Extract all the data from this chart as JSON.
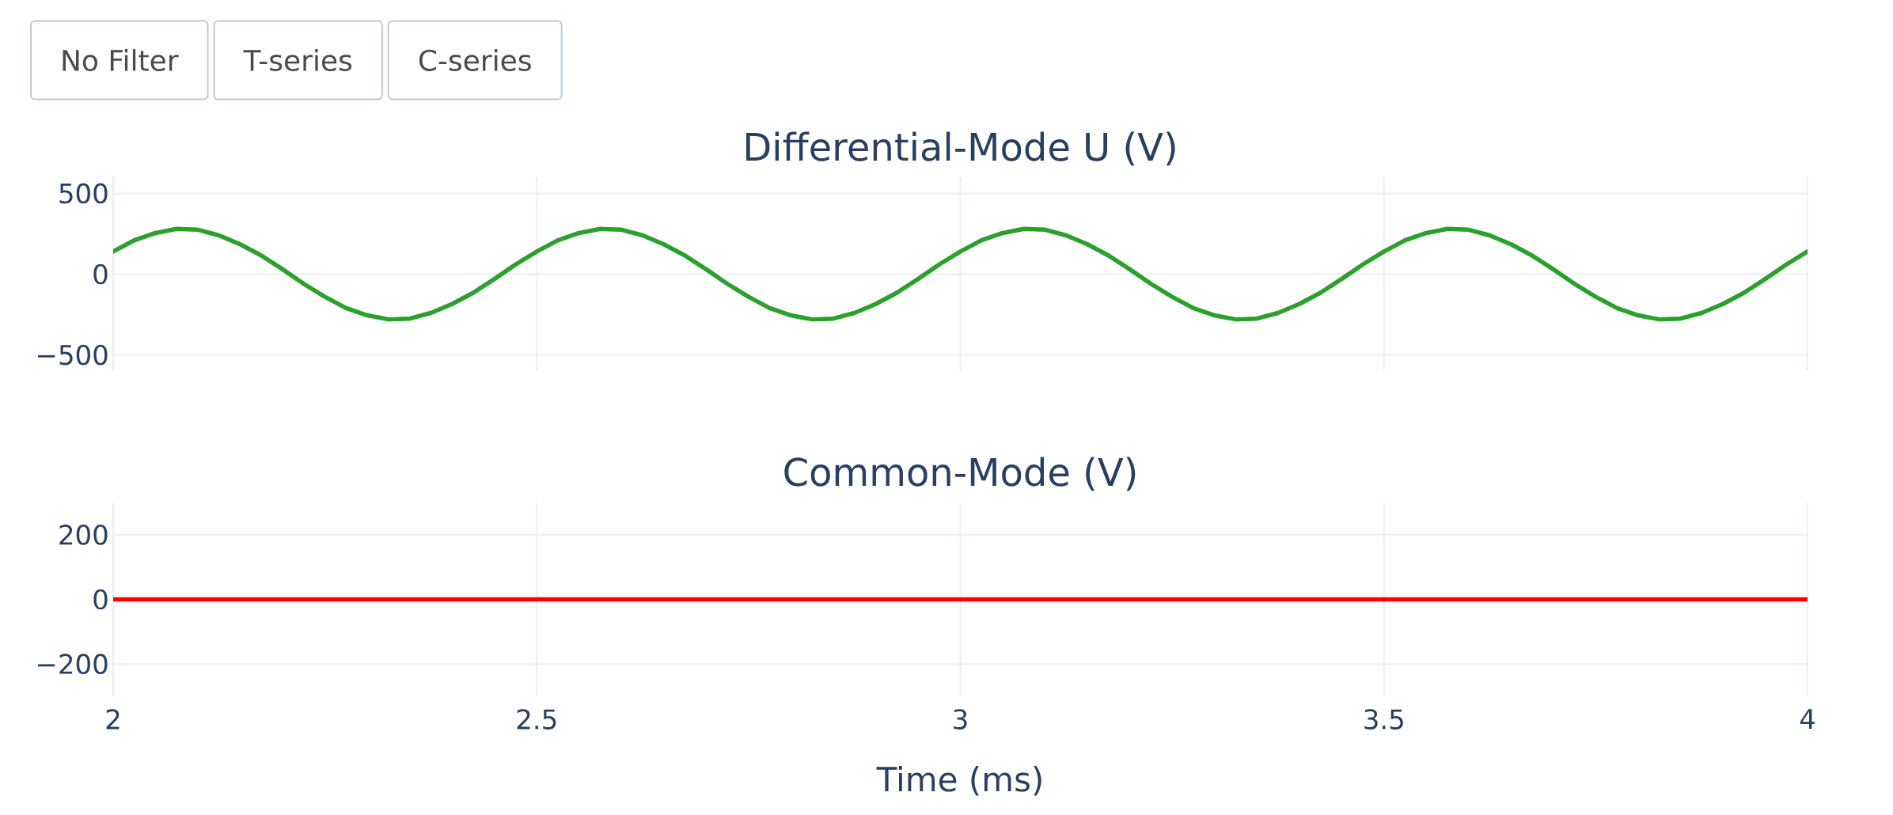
{
  "chart_data": [
    {
      "type": "line",
      "title": "Differential-Mode U (V)",
      "annotations": [
        "No Filter",
        "T-series",
        "C-series"
      ],
      "x": [
        2,
        2.025,
        2.05,
        2.075,
        2.1,
        2.125,
        2.15,
        2.175,
        2.2,
        2.225,
        2.25,
        2.275,
        2.3,
        2.325,
        2.35,
        2.375,
        2.4,
        2.425,
        2.45,
        2.475,
        2.5,
        2.525,
        2.55,
        2.575,
        2.6,
        2.625,
        2.65,
        2.675,
        2.7,
        2.725,
        2.75,
        2.775,
        2.8,
        2.825,
        2.85,
        2.875,
        2.9,
        2.925,
        2.95,
        2.975,
        3,
        3.025,
        3.05,
        3.075,
        3.1,
        3.125,
        3.15,
        3.175,
        3.2,
        3.225,
        3.25,
        3.275,
        3.3,
        3.325,
        3.35,
        3.375,
        3.4,
        3.425,
        3.45,
        3.475,
        3.5,
        3.525,
        3.55,
        3.575,
        3.6,
        3.625,
        3.65,
        3.675,
        3.7,
        3.725,
        3.75,
        3.775,
        3.8,
        3.825,
        3.85,
        3.875,
        3.9,
        3.925,
        3.95,
        3.975,
        4
      ],
      "series": [
        {
          "color": "#2ca02c",
          "values": [
            140,
            210,
            255,
            280,
            275,
            240,
            185,
            115,
            30,
            -60,
            -140,
            -210,
            -255,
            -280,
            -275,
            -240,
            -185,
            -115,
            -30,
            60,
            140,
            210,
            255,
            280,
            275,
            240,
            185,
            115,
            30,
            -60,
            -140,
            -210,
            -255,
            -280,
            -275,
            -240,
            -185,
            -115,
            -30,
            60,
            140,
            210,
            255,
            280,
            275,
            240,
            185,
            115,
            30,
            -60,
            -140,
            -210,
            -255,
            -280,
            -275,
            -240,
            -185,
            -115,
            -30,
            60,
            140,
            210,
            255,
            280,
            275,
            240,
            185,
            115,
            30,
            -60,
            -140,
            -210,
            -255,
            -280,
            -275,
            -240,
            -185,
            -115,
            -30,
            60,
            140
          ]
        }
      ],
      "xlim": [
        2,
        4
      ],
      "xticks": [
        2,
        2.5,
        3,
        3.5,
        4
      ],
      "ylim": [
        -600,
        600
      ],
      "yticks": [
        {
          "value": -500,
          "label": "−500"
        },
        0,
        500
      ],
      "grid": true,
      "tick_labels": "y"
    },
    {
      "type": "line",
      "title": "Common-Mode (V)",
      "xlabel": "Time (ms)",
      "x": [
        2,
        2.05,
        2.1,
        2.15,
        2.2,
        2.25,
        2.3,
        2.35,
        2.4,
        2.45,
        2.5,
        2.55,
        2.6,
        2.65,
        2.7,
        2.75,
        2.8,
        2.85,
        2.9,
        2.95,
        3,
        3.05,
        3.1,
        3.15,
        3.2,
        3.25,
        3.3,
        3.35,
        3.4,
        3.45,
        3.5,
        3.55,
        3.6,
        3.65,
        3.7,
        3.75,
        3.8,
        3.85,
        3.9,
        3.95,
        4
      ],
      "series": [
        {
          "color": "#ff0000",
          "values": [
            0,
            0,
            0,
            0,
            0,
            0,
            0,
            0,
            0,
            0,
            0,
            0,
            0,
            0,
            0,
            0,
            0,
            0,
            0,
            0,
            0,
            0,
            0,
            0,
            0,
            0,
            0,
            0,
            0,
            0,
            0,
            0,
            0,
            0,
            0,
            0,
            0,
            0,
            0,
            0,
            0
          ]
        }
      ],
      "xlim": [
        2,
        4
      ],
      "xticks": [
        2,
        2.5,
        3,
        3.5,
        4
      ],
      "ylim": [
        -300,
        300
      ],
      "yticks": [
        {
          "value": -200,
          "label": "−200"
        },
        0,
        200
      ],
      "grid": true
    }
  ]
}
